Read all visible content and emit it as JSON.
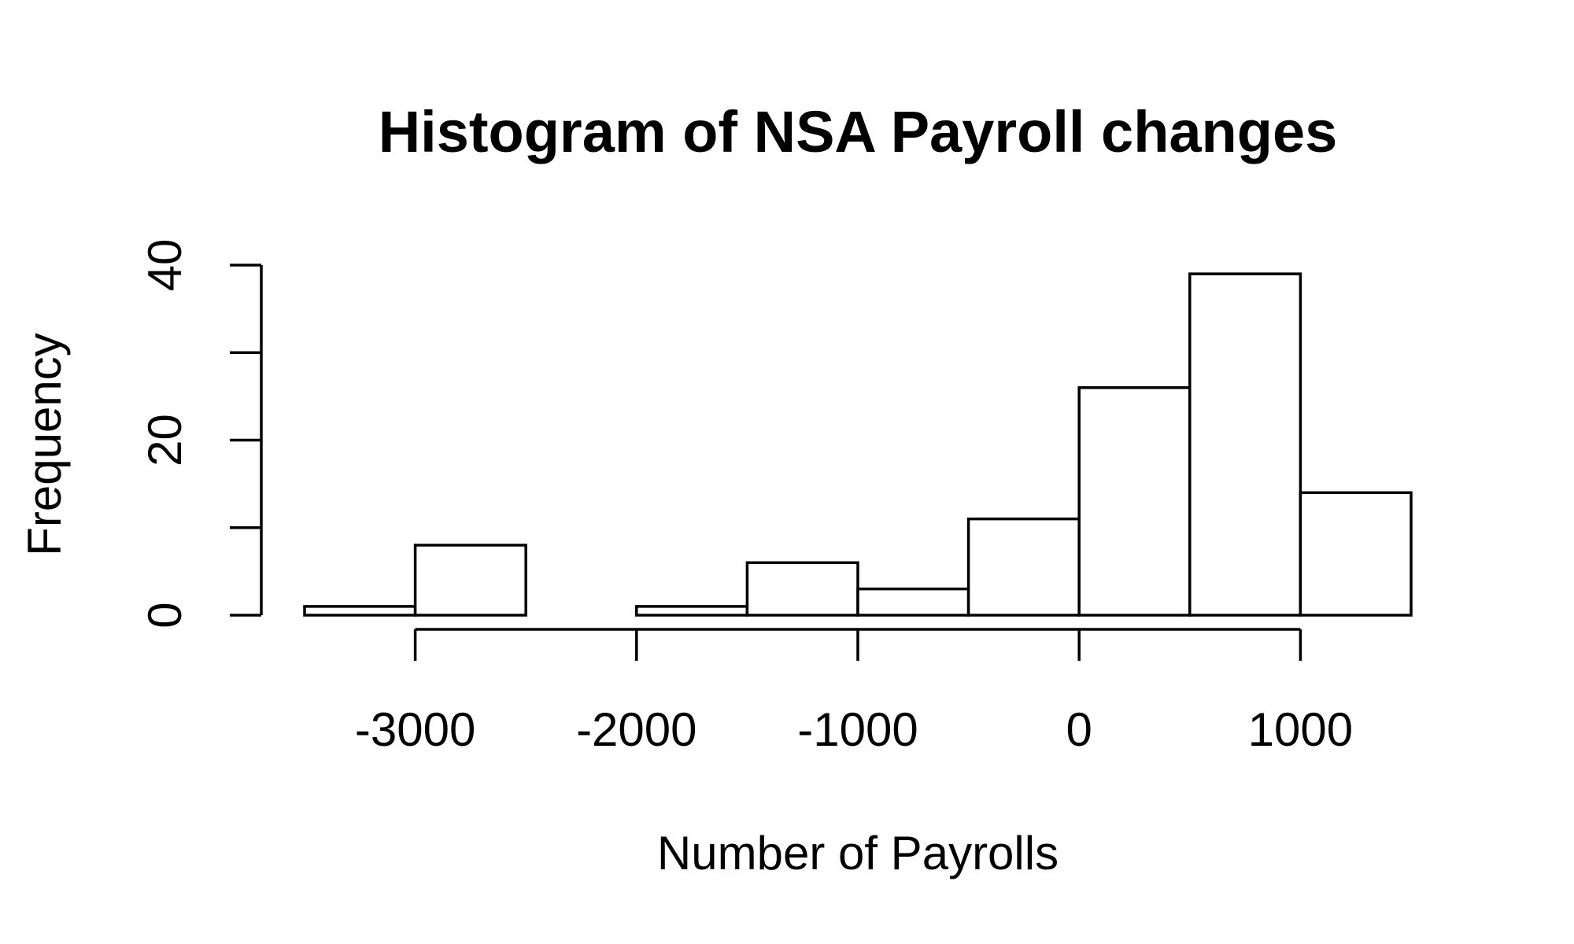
{
  "chart_data": {
    "type": "bar",
    "subtype": "histogram",
    "title": "Histogram of NSA Payroll changes",
    "xlabel": "Number of Payrolls",
    "ylabel": "Frequency",
    "bins": [
      {
        "start": -3500,
        "end": -3000,
        "count": 1
      },
      {
        "start": -3000,
        "end": -2500,
        "count": 8
      },
      {
        "start": -2500,
        "end": -2000,
        "count": 0
      },
      {
        "start": -2000,
        "end": -1500,
        "count": 1
      },
      {
        "start": -1500,
        "end": -1000,
        "count": 6
      },
      {
        "start": -1000,
        "end": -500,
        "count": 3
      },
      {
        "start": -500,
        "end": 0,
        "count": 11
      },
      {
        "start": 0,
        "end": 500,
        "count": 26
      },
      {
        "start": 500,
        "end": 1000,
        "count": 39
      },
      {
        "start": 1000,
        "end": 1500,
        "count": 14
      }
    ],
    "xlim": [
      -3500,
      1500
    ],
    "ylim": [
      0,
      40
    ],
    "x_ticks": [
      -3000,
      -2000,
      -1000,
      0,
      1000
    ],
    "x_tick_labels": [
      "-3000",
      "-2000",
      "-1000",
      "0",
      "1000"
    ],
    "y_ticks": [
      0,
      10,
      20,
      30,
      40
    ],
    "y_tick_labels": [
      "0",
      "",
      "20",
      "",
      "40"
    ],
    "grid": false,
    "legend": "none",
    "colors": {
      "bar_fill": "#ffffff",
      "bar_stroke": "#000000",
      "text": "#000000"
    }
  }
}
